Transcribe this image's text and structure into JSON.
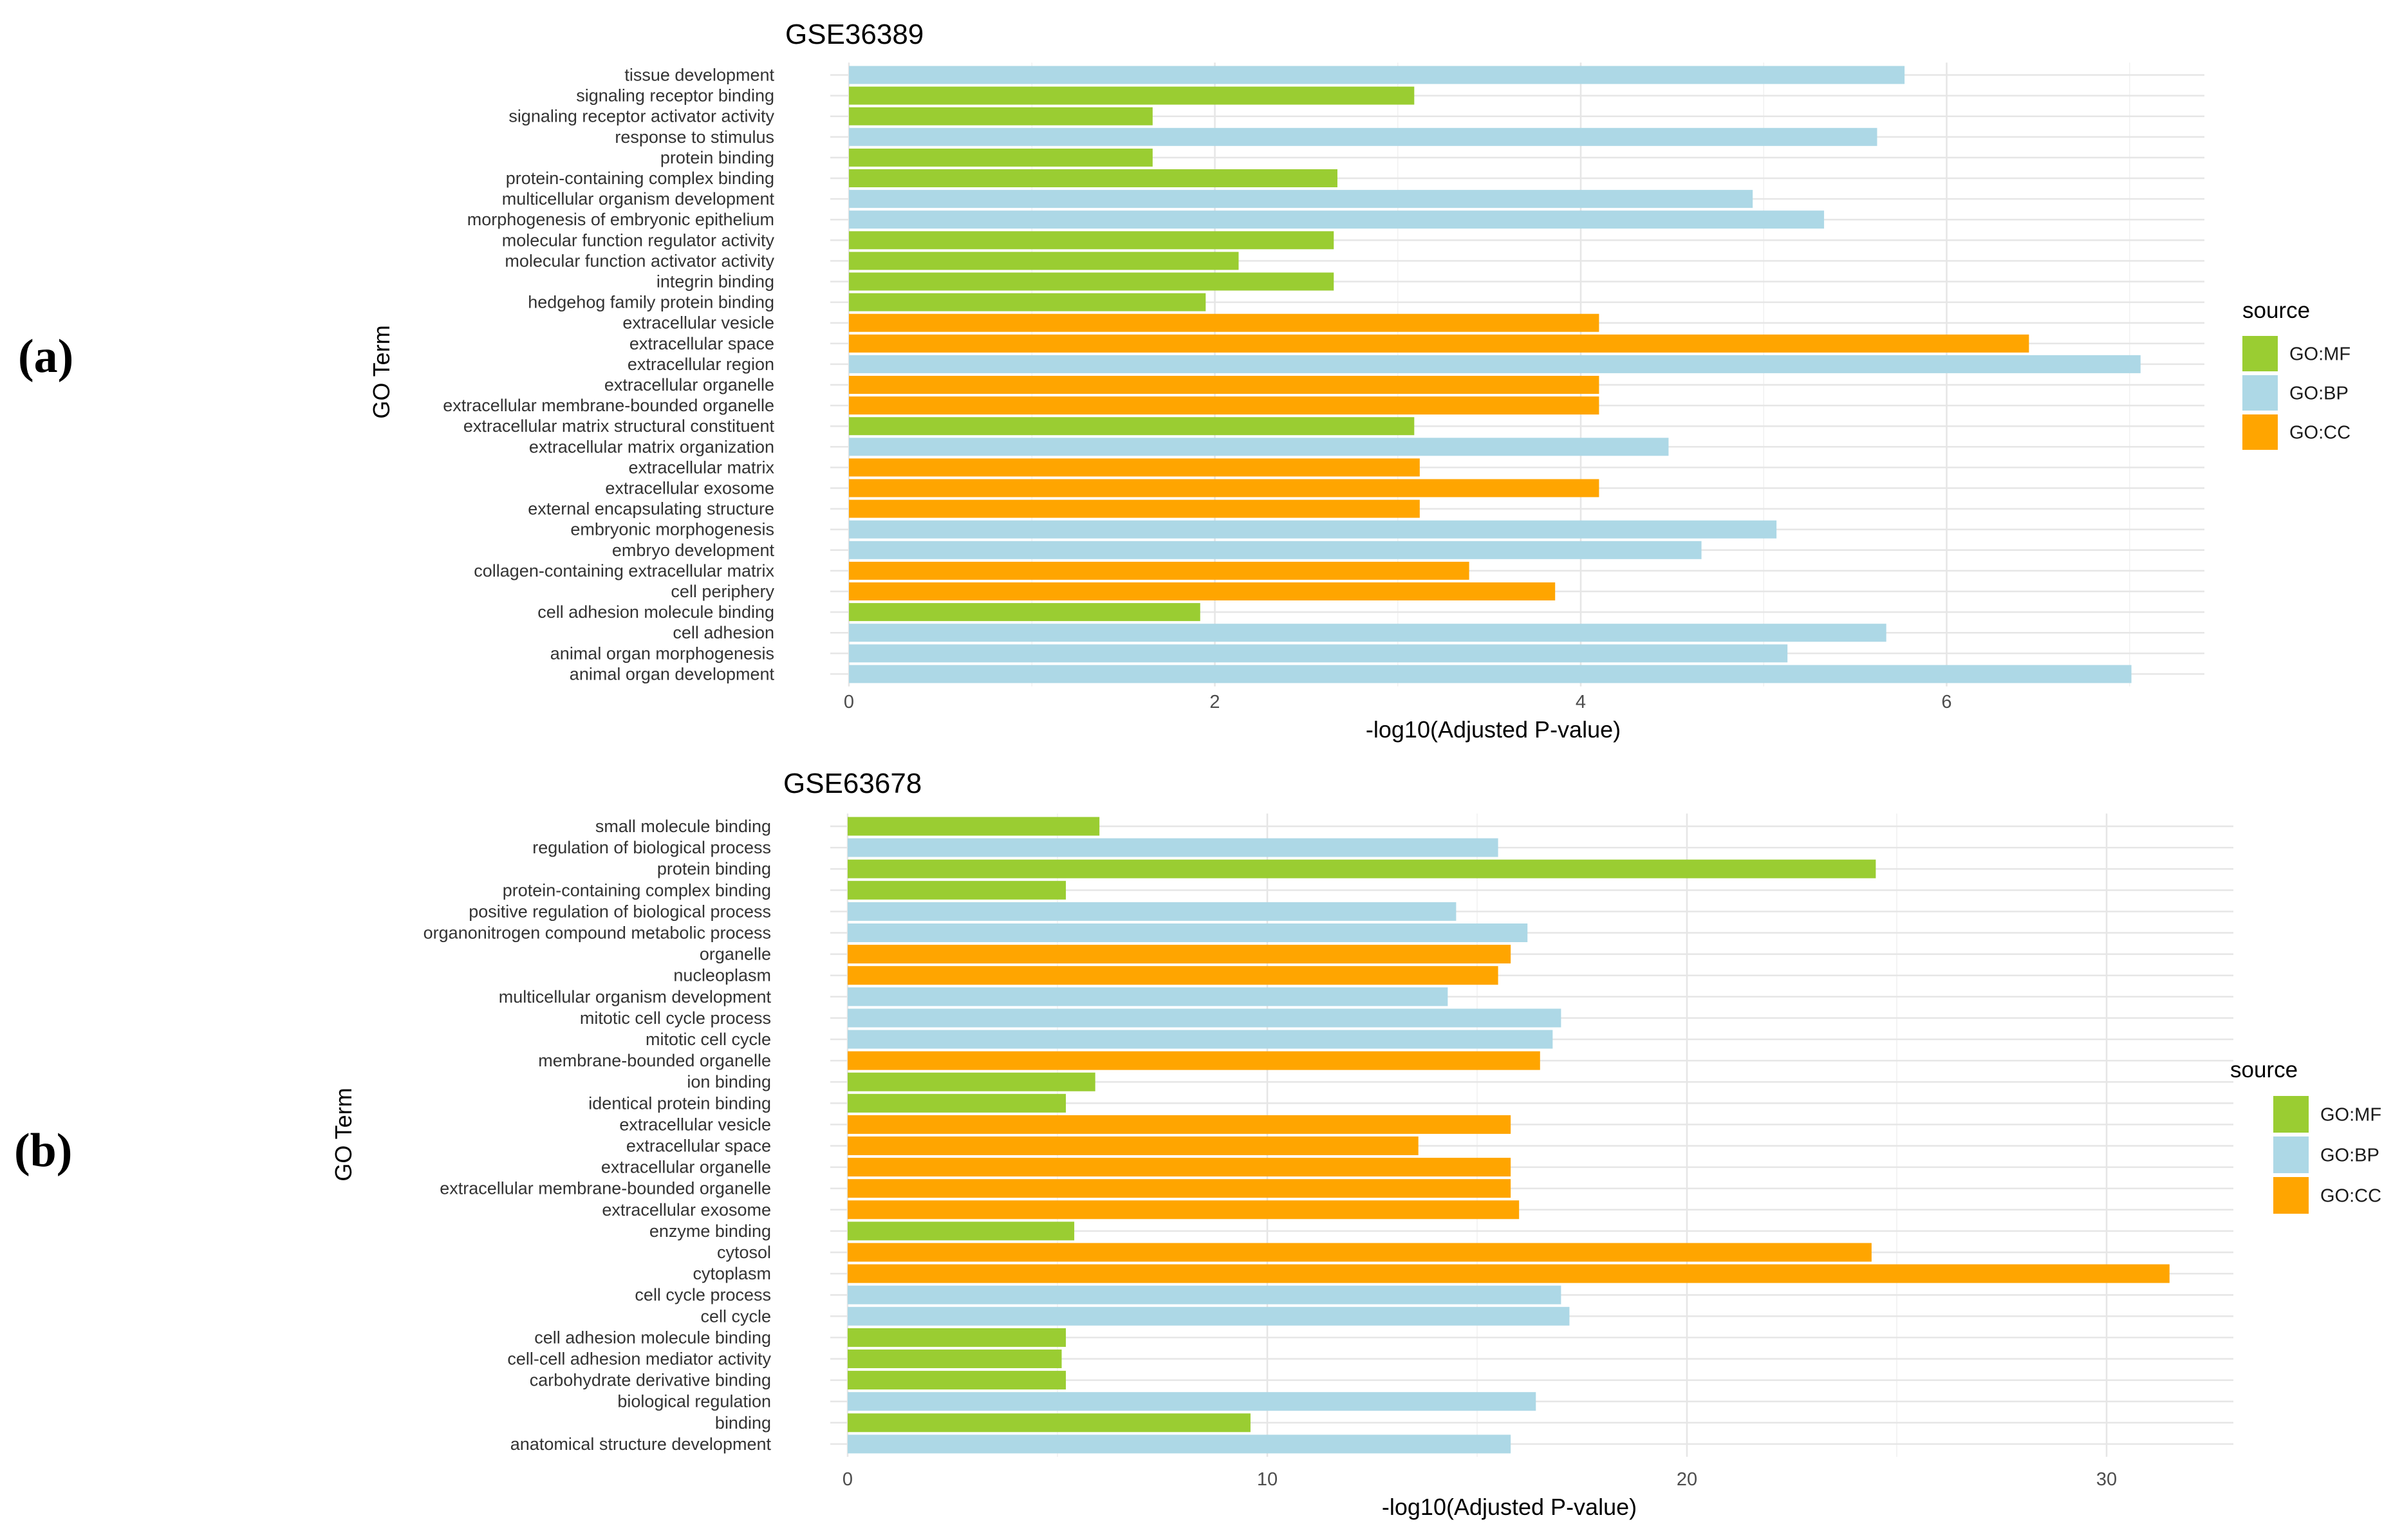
{
  "panels": [
    {
      "label": "(a)",
      "legend": {
        "title": "source",
        "items": [
          {
            "key": "GO:MF",
            "color": "#9ACD32"
          },
          {
            "key": "GO:BP",
            "color": "#ADD8E6"
          },
          {
            "key": "GO:CC",
            "color": "#FFA500"
          }
        ]
      }
    },
    {
      "label": "(b)",
      "legend": {
        "title": "source",
        "items": [
          {
            "key": "GO:MF",
            "color": "#9ACD32"
          },
          {
            "key": "GO:BP",
            "color": "#ADD8E6"
          },
          {
            "key": "GO:CC",
            "color": "#FFA500"
          }
        ]
      }
    }
  ],
  "chart_data": [
    {
      "type": "bar",
      "orientation": "horizontal",
      "title": "GSE36389",
      "xlabel": "-log10(Adjusted P-value)",
      "ylabel": "GO Term",
      "xlim": [
        0,
        7.42
      ],
      "xticks": [
        0,
        2,
        4,
        6
      ],
      "grid": true,
      "legend_position": "right",
      "categories": [
        "tissue development",
        "signaling receptor binding",
        "signaling receptor activator activity",
        "response to stimulus",
        "protein binding",
        "protein-containing complex binding",
        "multicellular organism development",
        "morphogenesis of embryonic epithelium",
        "molecular function regulator activity",
        "molecular function activator activity",
        "integrin binding",
        "hedgehog family protein binding",
        "extracellular vesicle",
        "extracellular space",
        "extracellular region",
        "extracellular organelle",
        "extracellular membrane-bounded organelle",
        "extracellular matrix structural constituent",
        "extracellular matrix organization",
        "extracellular matrix",
        "extracellular exosome",
        "external encapsulating structure",
        "embryonic morphogenesis",
        "embryo development",
        "collagen-containing extracellular matrix",
        "cell periphery",
        "cell adhesion molecule binding",
        "cell adhesion",
        "animal organ morphogenesis",
        "animal organ development"
      ],
      "values": [
        5.77,
        3.09,
        1.66,
        5.62,
        1.66,
        2.67,
        4.94,
        5.33,
        2.65,
        2.13,
        2.65,
        1.95,
        4.1,
        6.45,
        7.06,
        4.1,
        4.1,
        3.09,
        4.48,
        3.12,
        4.1,
        3.12,
        5.07,
        4.66,
        3.39,
        3.86,
        1.92,
        5.67,
        5.13,
        7.01
      ],
      "sources": [
        "GO:BP",
        "GO:MF",
        "GO:MF",
        "GO:BP",
        "GO:MF",
        "GO:MF",
        "GO:BP",
        "GO:BP",
        "GO:MF",
        "GO:MF",
        "GO:MF",
        "GO:MF",
        "GO:CC",
        "GO:CC",
        "GO:BP",
        "GO:CC",
        "GO:CC",
        "GO:MF",
        "GO:BP",
        "GO:CC",
        "GO:CC",
        "GO:CC",
        "GO:BP",
        "GO:BP",
        "GO:CC",
        "GO:CC",
        "GO:MF",
        "GO:BP",
        "GO:BP",
        "GO:BP"
      ]
    },
    {
      "type": "bar",
      "orientation": "horizontal",
      "title": "GSE63678",
      "xlabel": "-log10(Adjusted P-value)",
      "ylabel": "GO Term",
      "xlim": [
        0,
        33
      ],
      "xticks": [
        0,
        10,
        20,
        30
      ],
      "grid": true,
      "legend_position": "right",
      "categories": [
        "small molecule binding",
        "regulation of biological process",
        "protein binding",
        "protein-containing complex binding",
        "positive regulation of biological process",
        "organonitrogen compound metabolic process",
        "organelle",
        "nucleoplasm",
        "multicellular organism development",
        "mitotic cell cycle process",
        "mitotic cell cycle",
        "membrane-bounded organelle",
        "ion binding",
        "identical protein binding",
        "extracellular vesicle",
        "extracellular space",
        "extracellular organelle",
        "extracellular membrane-bounded organelle",
        "extracellular exosome",
        "enzyme binding",
        "cytosol",
        "cytoplasm",
        "cell cycle process",
        "cell cycle",
        "cell adhesion molecule binding",
        "cell-cell adhesion mediator activity",
        "carbohydrate derivative binding",
        "biological regulation",
        "binding",
        "anatomical structure development"
      ],
      "values": [
        6.0,
        15.5,
        24.5,
        5.2,
        14.5,
        16.2,
        15.8,
        15.5,
        14.3,
        17.0,
        16.8,
        16.5,
        5.9,
        5.2,
        15.8,
        13.6,
        15.8,
        15.8,
        16.0,
        5.4,
        24.4,
        31.5,
        17.0,
        17.2,
        5.2,
        5.1,
        5.2,
        16.4,
        9.6,
        15.8
      ],
      "sources": [
        "GO:MF",
        "GO:BP",
        "GO:MF",
        "GO:MF",
        "GO:BP",
        "GO:BP",
        "GO:CC",
        "GO:CC",
        "GO:BP",
        "GO:BP",
        "GO:BP",
        "GO:CC",
        "GO:MF",
        "GO:MF",
        "GO:CC",
        "GO:CC",
        "GO:CC",
        "GO:CC",
        "GO:CC",
        "GO:MF",
        "GO:CC",
        "GO:CC",
        "GO:BP",
        "GO:BP",
        "GO:MF",
        "GO:MF",
        "GO:MF",
        "GO:BP",
        "GO:MF",
        "GO:BP"
      ]
    }
  ]
}
